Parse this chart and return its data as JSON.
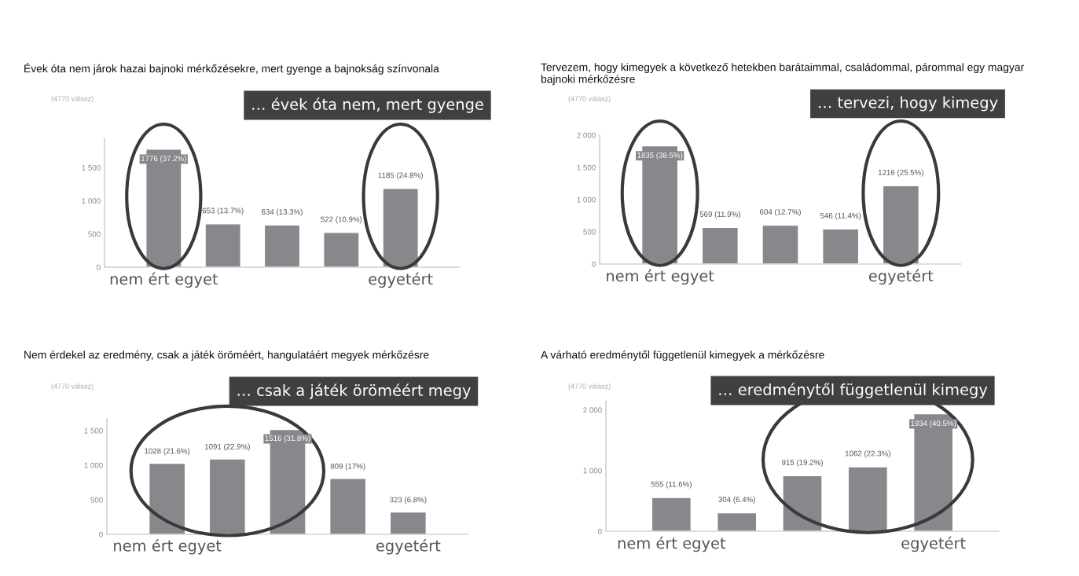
{
  "chart_data": [
    {
      "type": "bar",
      "title": "Évek óta nem járok hazai bajnoki mérkőzésekre, mert gyenge a bajnokság színvonala",
      "subtitle": "(4770 válasz)",
      "annotations": [
        "… évek óta nem, mert gyenge"
      ],
      "categories": [
        "nem ért egyet",
        null,
        null,
        null,
        "egyetért"
      ],
      "values": [
        1776,
        653,
        634,
        522,
        1185
      ],
      "value_labels": [
        "1776 (37.2%)",
        "653 (13.7%)",
        "634 (13.3%)",
        "522 (10.9%)",
        "1185 (24.8%)"
      ],
      "color": "#87888c",
      "ylim": [
        0,
        1940
      ],
      "yticks": [
        0,
        500,
        {
          "value": 1000,
          "label": "1 000"
        },
        {
          "value": 1500,
          "label": "1 500"
        }
      ],
      "grid": false,
      "legend": false
    },
    {
      "type": "bar",
      "title": "Tervezem, hogy kimegyek a következő hetekben barátaimmal, családommal, párommal egy magyar bajnoki mérkőzésre",
      "subtitle": "(4770 válasz)",
      "annotations": [
        "… tervezi, hogy kimegy"
      ],
      "categories": [
        "nem ért egyet",
        null,
        null,
        null,
        "egyetért"
      ],
      "values": [
        1835,
        569,
        604,
        546,
        1216
      ],
      "value_labels": [
        "1835 (38.5%)",
        "569 (11.9%)",
        "604 (12.7%)",
        "546 (11.4%)",
        "1216 (25.5%)"
      ],
      "color": "#87888c",
      "ylim": [
        0,
        2000
      ],
      "yticks": [
        0,
        500,
        {
          "value": 1000,
          "label": "1 000"
        },
        {
          "value": 1500,
          "label": "1 500"
        },
        {
          "value": 2000,
          "label": "2 000"
        }
      ],
      "grid": false,
      "legend": false
    },
    {
      "type": "bar",
      "title": "Nem érdekel az eredmény, csak a játék öröméért, hangulatáért megyek mérkőzésre",
      "subtitle": "(4770 válasz)",
      "annotations": [
        "… csak a játék öröméért megy"
      ],
      "categories": [
        "nem ért egyet",
        null,
        null,
        null,
        "egyetért"
      ],
      "values": [
        1028,
        1091,
        1516,
        809,
        323
      ],
      "value_labels": [
        "1028 (21.6%)",
        "1091 (22.9%)",
        "1516 (31.8%)",
        "809 (17%)",
        "323 (6.8%)"
      ],
      "color": "#87888c",
      "ylim": [
        0,
        1670
      ],
      "yticks": [
        0,
        500,
        {
          "value": 1000,
          "label": "1 000"
        },
        {
          "value": 1500,
          "label": "1 500"
        }
      ],
      "grid": false,
      "legend": false
    },
    {
      "type": "bar",
      "title": "A várható eredménytől függetlenül kimegyek a mérkőzésre",
      "subtitle": "(4770 válasz)",
      "annotations": [
        "… eredménytől függetlenül kimegy"
      ],
      "categories": [
        "nem ért egyet",
        null,
        null,
        null,
        "egyetért"
      ],
      "values": [
        555,
        304,
        915,
        1062,
        1934
      ],
      "value_labels": [
        "555 (11.6%)",
        "304 (6.4%)",
        "915 (19.2%)",
        "1062 (22.3%)",
        "1934 (40.5%)"
      ],
      "color": "#87888c",
      "ylim": [
        0,
        2150
      ],
      "yticks": [
        0,
        {
          "value": 1000,
          "label": "1 000"
        },
        {
          "value": 2000,
          "label": "2 000"
        }
      ],
      "grid": false,
      "legend": false
    }
  ]
}
